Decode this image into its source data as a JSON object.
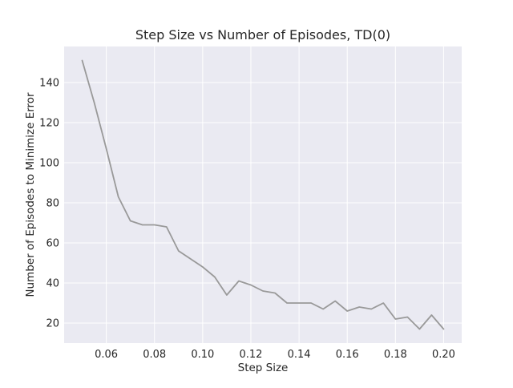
{
  "chart_data": {
    "type": "line",
    "title": "Step Size vs Number of Episodes, TD(0)",
    "xlabel": "Step Size",
    "ylabel": "Number of Episodes to Minimize Error",
    "xlim": [
      0.0425,
      0.2075
    ],
    "ylim": [
      10,
      158
    ],
    "xticks": [
      0.06,
      0.08,
      0.1,
      0.12,
      0.14,
      0.16,
      0.18,
      0.2
    ],
    "xtick_labels": [
      "0.06",
      "0.08",
      "0.10",
      "0.12",
      "0.14",
      "0.16",
      "0.18",
      "0.20"
    ],
    "yticks": [
      20,
      40,
      60,
      80,
      100,
      120,
      140
    ],
    "ytick_labels": [
      "20",
      "40",
      "60",
      "80",
      "100",
      "120",
      "140"
    ],
    "grid": true,
    "legend": "none",
    "line_color": "#999999",
    "background_color": "#eaeaf2",
    "series": [
      {
        "x": [
          0.05,
          0.055,
          0.06,
          0.065,
          0.07,
          0.075,
          0.08,
          0.085,
          0.09,
          0.095,
          0.1,
          0.105,
          0.11,
          0.115,
          0.12,
          0.125,
          0.13,
          0.135,
          0.14,
          0.145,
          0.15,
          0.155,
          0.16,
          0.165,
          0.17,
          0.175,
          0.18,
          0.185,
          0.19,
          0.195,
          0.2
        ],
        "y": [
          151,
          130,
          107,
          83,
          71,
          69,
          69,
          68,
          56,
          52,
          48,
          43,
          34,
          41,
          39,
          36,
          35,
          30,
          30,
          30,
          27,
          31,
          26,
          28,
          27,
          30,
          22,
          23,
          17,
          24,
          17
        ]
      }
    ]
  }
}
